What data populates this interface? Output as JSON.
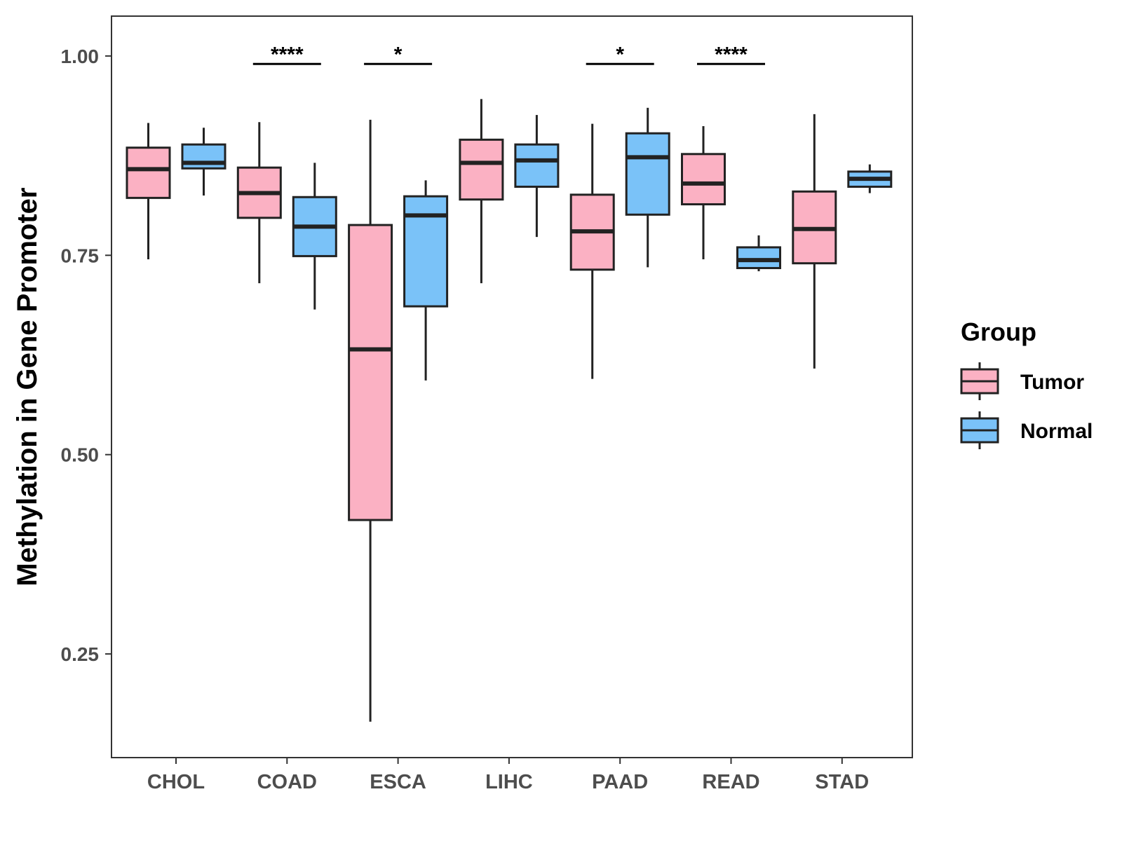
{
  "chart_data": {
    "type": "boxplot",
    "title": "",
    "xlabel": "",
    "ylabel": "Methylation in Gene Promoter",
    "ylim": [
      0.12,
      1.05
    ],
    "yticks": [
      0.25,
      0.5,
      0.75,
      1.0
    ],
    "ytick_labels": [
      "0.25",
      "0.50",
      "0.75",
      "1.00"
    ],
    "categories": [
      "CHOL",
      "COAD",
      "ESCA",
      "LIHC",
      "PAAD",
      "READ",
      "STAD"
    ],
    "series": [
      {
        "name": "Tumor",
        "color": "#fbb1c3",
        "boxes": [
          {
            "whisker_low": 0.745,
            "q1": 0.822,
            "median": 0.858,
            "q3": 0.885,
            "whisker_high": 0.916
          },
          {
            "whisker_low": 0.715,
            "q1": 0.797,
            "median": 0.828,
            "q3": 0.86,
            "whisker_high": 0.917
          },
          {
            "whisker_low": 0.165,
            "q1": 0.418,
            "median": 0.632,
            "q3": 0.788,
            "whisker_high": 0.92
          },
          {
            "whisker_low": 0.715,
            "q1": 0.82,
            "median": 0.866,
            "q3": 0.895,
            "whisker_high": 0.946
          },
          {
            "whisker_low": 0.595,
            "q1": 0.732,
            "median": 0.78,
            "q3": 0.826,
            "whisker_high": 0.915
          },
          {
            "whisker_low": 0.745,
            "q1": 0.814,
            "median": 0.84,
            "q3": 0.877,
            "whisker_high": 0.912
          },
          {
            "whisker_low": 0.608,
            "q1": 0.74,
            "median": 0.783,
            "q3": 0.83,
            "whisker_high": 0.927
          }
        ]
      },
      {
        "name": "Normal",
        "color": "#7ac2f8",
        "boxes": [
          {
            "whisker_low": 0.825,
            "q1": 0.859,
            "median": 0.866,
            "q3": 0.889,
            "whisker_high": 0.91
          },
          {
            "whisker_low": 0.682,
            "q1": 0.749,
            "median": 0.786,
            "q3": 0.823,
            "whisker_high": 0.866
          },
          {
            "whisker_low": 0.593,
            "q1": 0.686,
            "median": 0.8,
            "q3": 0.824,
            "whisker_high": 0.844
          },
          {
            "whisker_low": 0.773,
            "q1": 0.836,
            "median": 0.869,
            "q3": 0.889,
            "whisker_high": 0.926
          },
          {
            "whisker_low": 0.735,
            "q1": 0.801,
            "median": 0.873,
            "q3": 0.903,
            "whisker_high": 0.935
          },
          {
            "whisker_low": 0.73,
            "q1": 0.734,
            "median": 0.744,
            "q3": 0.76,
            "whisker_high": 0.775
          },
          {
            "whisker_low": 0.828,
            "q1": 0.836,
            "median": 0.846,
            "q3": 0.855,
            "whisker_high": 0.864
          }
        ]
      }
    ],
    "significance": [
      {
        "category": "COAD",
        "label": "****",
        "y": 0.99
      },
      {
        "category": "ESCA",
        "label": "*",
        "y": 0.99
      },
      {
        "category": "PAAD",
        "label": "*",
        "y": 0.99
      },
      {
        "category": "READ",
        "label": "****",
        "y": 0.99
      }
    ],
    "legend": {
      "title": "Group",
      "placement": "right",
      "entries": [
        "Tumor",
        "Normal"
      ]
    },
    "grid": false
  }
}
